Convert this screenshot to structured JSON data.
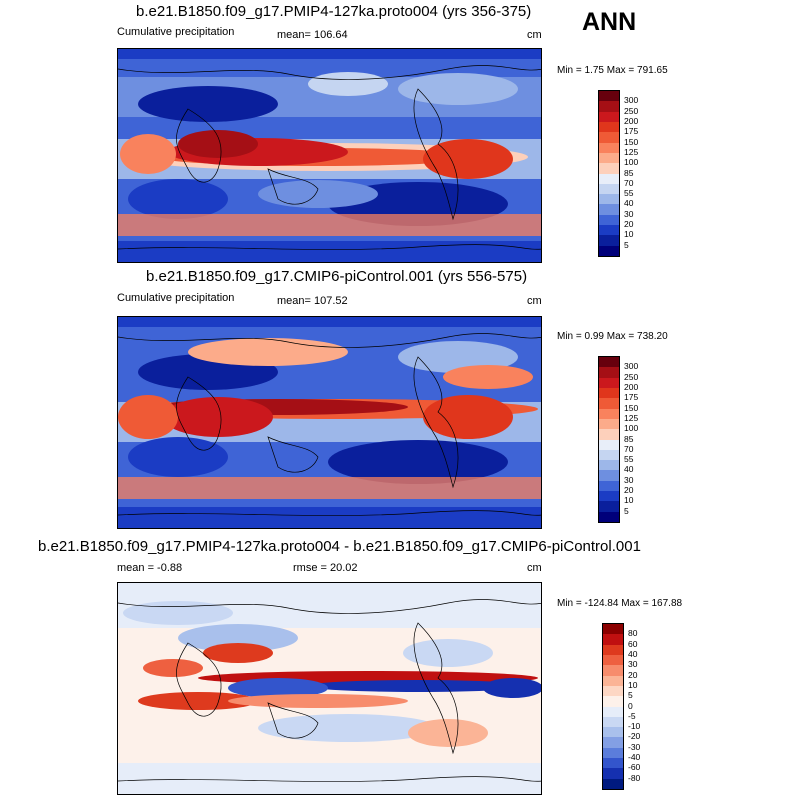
{
  "season": "ANN",
  "panels": [
    {
      "title": "b.e21.B1850.f09_g17.PMIP4-127ka.proto004 (yrs 356-375)",
      "left_label": "Cumulative precipitation",
      "center_label": "mean= 106.64",
      "right_label": "cm",
      "range": "Min =   1.75 Max = 791.65",
      "cbar_labels": [
        "300",
        "250",
        "200",
        "175",
        "150",
        "125",
        "100",
        "85",
        "70",
        "55",
        "40",
        "30",
        "20",
        "10",
        "5"
      ],
      "cbar_colors": [
        "#67000d",
        "#a50f15",
        "#cb181d",
        "#e0361c",
        "#ef5a36",
        "#f9825d",
        "#fcab8a",
        "#fdd0bb",
        "#e8eef9",
        "#c5d5f1",
        "#9db7e9",
        "#6e8fe0",
        "#3f64d6",
        "#1b3cc4",
        "#0a1f9c",
        "#00007a"
      ]
    },
    {
      "title": "b.e21.B1850.f09_g17.CMIP6-piControl.001 (yrs 556-575)",
      "left_label": "Cumulative precipitation",
      "center_label": "mean= 107.52",
      "right_label": "cm",
      "range": "Min =   0.99 Max = 738.20",
      "cbar_labels": [
        "300",
        "250",
        "200",
        "175",
        "150",
        "125",
        "100",
        "85",
        "70",
        "55",
        "40",
        "30",
        "20",
        "10",
        "5"
      ],
      "cbar_colors": [
        "#67000d",
        "#a50f15",
        "#cb181d",
        "#e0361c",
        "#ef5a36",
        "#f9825d",
        "#fcab8a",
        "#fdd0bb",
        "#e8eef9",
        "#c5d5f1",
        "#9db7e9",
        "#6e8fe0",
        "#3f64d6",
        "#1b3cc4",
        "#0a1f9c",
        "#00007a"
      ]
    },
    {
      "title": "b.e21.B1850.f09_g17.PMIP4-127ka.proto004 - b.e21.B1850.f09_g17.CMIP6-piControl.001",
      "left_label": "mean =  -0.88",
      "center_label": "rmse =  20.02",
      "right_label": "cm",
      "range": "Min = -124.84 Max = 167.88",
      "cbar_labels": [
        "80",
        "60",
        "40",
        "30",
        "20",
        "10",
        "5",
        "0",
        "-5",
        "-10",
        "-20",
        "-30",
        "-40",
        "-60",
        "-80"
      ],
      "cbar_colors": [
        "#8b0000",
        "#c01010",
        "#de3a1e",
        "#ee6040",
        "#f78c6c",
        "#fbb496",
        "#fdd7c4",
        "#fdf1ea",
        "#e6edf9",
        "#c9d8f3",
        "#a9c0ec",
        "#839fe4",
        "#5b7ddb",
        "#3355cc",
        "#1530b0",
        "#001a80"
      ]
    }
  ]
}
